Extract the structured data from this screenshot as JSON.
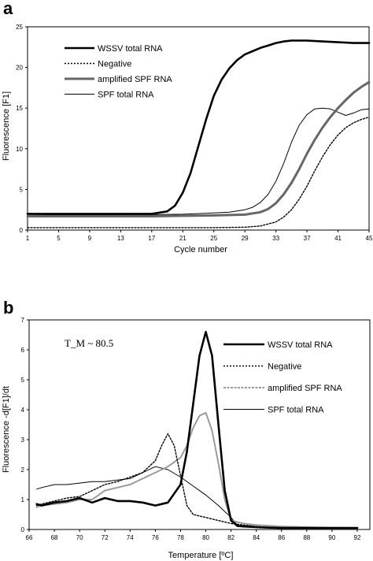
{
  "chart_data": [
    {
      "panel_label": "a",
      "type": "line",
      "xlabel": "Cycle number",
      "ylabel": "Fluorescence [F1]",
      "xlim": [
        1,
        45
      ],
      "ylim": [
        0,
        25
      ],
      "xticks": [
        "1",
        "5",
        "9",
        "13",
        "17",
        "21",
        "25",
        "29",
        "33",
        "37",
        "41",
        "45"
      ],
      "yticks": [
        "0",
        "5",
        "10",
        "15",
        "20",
        "25"
      ],
      "grid": false,
      "legend_position": "top-left",
      "series": [
        {
          "name": "WSSV total RNA",
          "style": "thick-solid",
          "color": "#000000",
          "x": [
            1,
            5,
            9,
            13,
            17,
            19,
            20,
            21,
            22,
            23,
            24,
            25,
            26,
            27,
            28,
            29,
            30,
            31,
            32,
            33,
            34,
            35,
            37,
            39,
            41,
            43,
            45
          ],
          "y": [
            2.0,
            2.0,
            2.0,
            2.0,
            2.0,
            2.3,
            3.0,
            4.6,
            7.0,
            10.3,
            13.6,
            16.5,
            18.5,
            19.9,
            20.9,
            21.6,
            22.0,
            22.4,
            22.7,
            23.0,
            23.2,
            23.3,
            23.3,
            23.2,
            23.1,
            23.0,
            23.0
          ]
        },
        {
          "name": "Negative",
          "style": "dotted",
          "color": "#000000",
          "x": [
            1,
            5,
            9,
            13,
            17,
            21,
            25,
            29,
            31,
            33,
            34,
            35,
            36,
            37,
            38,
            39,
            40,
            41,
            42,
            43,
            44,
            45
          ],
          "y": [
            0.3,
            0.3,
            0.3,
            0.3,
            0.3,
            0.3,
            0.3,
            0.35,
            0.5,
            1.0,
            1.6,
            2.5,
            3.8,
            5.4,
            7.3,
            9.0,
            10.5,
            11.7,
            12.6,
            13.2,
            13.6,
            13.9
          ]
        },
        {
          "name": "amplified SPF RNA",
          "style": "thick-gray",
          "color": "#666666",
          "x": [
            1,
            5,
            9,
            13,
            17,
            21,
            25,
            29,
            31,
            32,
            33,
            34,
            35,
            36,
            37,
            38,
            39,
            40,
            41,
            42,
            43,
            44,
            45
          ],
          "y": [
            1.7,
            1.7,
            1.7,
            1.7,
            1.7,
            1.75,
            1.8,
            1.9,
            2.2,
            2.6,
            3.3,
            4.4,
            5.8,
            7.5,
            9.4,
            11.1,
            12.6,
            13.9,
            15.0,
            16.0,
            16.9,
            17.6,
            18.2
          ]
        },
        {
          "name": "SPF total RNA",
          "style": "thin-solid",
          "color": "#000000",
          "x": [
            1,
            5,
            9,
            13,
            17,
            21,
            25,
            27,
            29,
            30,
            31,
            32,
            33,
            34,
            35,
            36,
            37,
            38,
            39,
            40,
            41,
            42,
            43,
            44,
            45
          ],
          "y": [
            1.8,
            1.85,
            1.85,
            1.9,
            1.9,
            1.95,
            2.1,
            2.2,
            2.5,
            2.8,
            3.4,
            4.4,
            6.0,
            8.2,
            10.8,
            12.9,
            14.2,
            14.9,
            15.0,
            14.9,
            14.5,
            14.1,
            14.4,
            14.8,
            14.9
          ]
        }
      ]
    },
    {
      "panel_label": "b",
      "type": "line",
      "xlabel": "Temperature [ºC]",
      "ylabel": "Fluorescence -d[F1]/dt",
      "xlim": [
        66,
        93
      ],
      "ylim": [
        0,
        7
      ],
      "xticks": [
        "66",
        "68",
        "70",
        "72",
        "74",
        "76",
        "78",
        "80",
        "82",
        "84",
        "86",
        "88",
        "90",
        "92"
      ],
      "yticks": [
        "0",
        "1",
        "2",
        "3",
        "4",
        "5",
        "6",
        "7"
      ],
      "grid": false,
      "legend_position": "top-right",
      "annotation": "T_M ~ 80.5",
      "series": [
        {
          "name": "WSSV total RNA",
          "style": "thick-solid",
          "color": "#000000",
          "x": [
            66.6,
            67,
            68,
            69,
            70,
            71,
            72,
            73,
            74,
            75,
            76,
            77,
            78,
            78.5,
            79,
            79.5,
            80,
            80.5,
            81,
            81.5,
            82,
            82.5,
            83,
            84,
            85,
            86,
            88,
            90,
            92
          ],
          "y": [
            0.85,
            0.8,
            0.9,
            0.95,
            1.05,
            0.9,
            1.05,
            0.95,
            0.95,
            0.9,
            0.8,
            0.9,
            1.5,
            2.6,
            4.2,
            5.8,
            6.6,
            5.8,
            3.5,
            1.3,
            0.3,
            0.12,
            0.1,
            0.08,
            0.06,
            0.05,
            0.05,
            0.05,
            0.05
          ]
        },
        {
          "name": "Negative",
          "style": "dotted",
          "color": "#000000",
          "x": [
            66.6,
            67,
            68,
            69,
            70,
            71,
            72,
            73,
            74,
            75,
            76,
            76.5,
            77,
            77.5,
            78,
            78.5,
            79,
            80,
            81,
            82,
            83,
            84,
            86,
            88,
            90,
            92
          ],
          "y": [
            0.8,
            0.85,
            0.95,
            1.05,
            1.1,
            1.3,
            1.5,
            1.6,
            1.75,
            1.9,
            2.3,
            2.8,
            3.2,
            2.8,
            1.8,
            0.8,
            0.5,
            0.4,
            0.3,
            0.2,
            0.15,
            0.1,
            0.05,
            0.05,
            0.05,
            0.05
          ]
        },
        {
          "name": "amplified SPF RNA",
          "style": "dashed-gray",
          "color": "#999999",
          "x": [
            66.6,
            67,
            68,
            69,
            70,
            71,
            72,
            73,
            74,
            75,
            76,
            77,
            78,
            78.5,
            79,
            79.5,
            80,
            80.5,
            81,
            81.5,
            82,
            83,
            84,
            86,
            88,
            90,
            92
          ],
          "y": [
            0.75,
            0.8,
            0.85,
            0.9,
            1.0,
            1.0,
            1.3,
            1.4,
            1.5,
            1.7,
            1.9,
            2.1,
            2.4,
            2.8,
            3.4,
            3.8,
            3.9,
            3.3,
            2.2,
            1.0,
            0.3,
            0.2,
            0.15,
            0.1,
            0.08,
            0.06,
            0.05
          ]
        },
        {
          "name": "SPF total RNA",
          "style": "thin-solid",
          "color": "#000000",
          "x": [
            66.6,
            67,
            68,
            69,
            70,
            71,
            72,
            73,
            74,
            75,
            76,
            77,
            78,
            79,
            80,
            81,
            82,
            82.5,
            83,
            84,
            86,
            88,
            90,
            92
          ],
          "y": [
            1.35,
            1.4,
            1.5,
            1.5,
            1.55,
            1.6,
            1.6,
            1.65,
            1.7,
            1.9,
            2.1,
            2.0,
            1.75,
            1.45,
            1.15,
            0.8,
            0.4,
            0.15,
            0.1,
            0.07,
            0.05,
            0.05,
            0.05,
            0.05
          ]
        }
      ]
    }
  ]
}
